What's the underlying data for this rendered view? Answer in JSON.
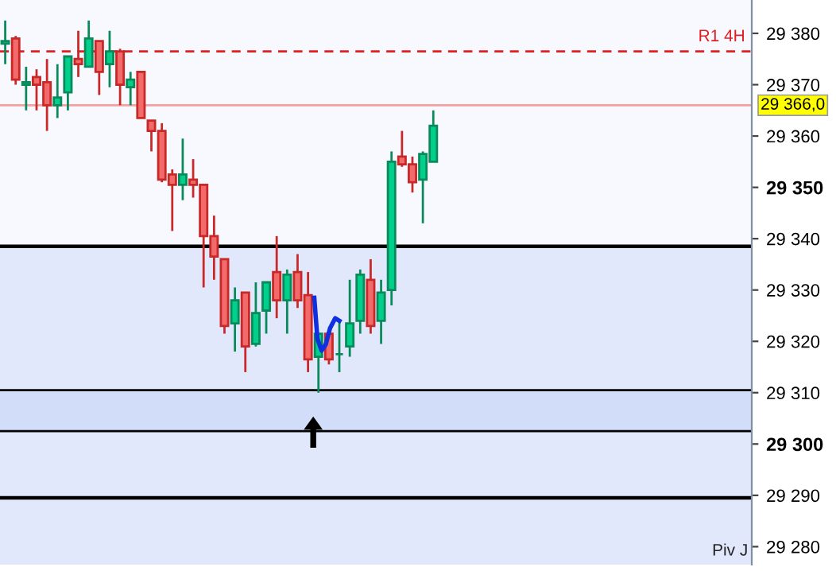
{
  "chart_data": {
    "type": "candlestick",
    "categories": [
      null,
      null,
      null,
      null,
      null,
      null,
      null,
      null,
      null,
      null,
      null,
      null,
      null,
      null,
      null,
      null,
      null,
      null,
      null,
      null,
      null,
      null,
      null,
      null,
      null,
      null,
      null,
      null,
      null,
      null,
      null,
      null,
      null,
      null,
      null,
      null,
      null,
      null,
      null,
      null,
      null,
      null,
      null,
      null,
      null,
      null,
      null,
      null,
      null,
      null,
      null,
      null,
      null,
      null,
      null,
      null,
      null,
      null,
      null,
      null,
      null,
      null,
      null,
      null,
      null,
      null,
      null,
      null,
      null,
      null,
      null,
      null
    ],
    "ohlc": [
      [
        29378,
        29382.5,
        29374,
        29378.5
      ],
      [
        29379,
        29379.5,
        29370,
        29371
      ],
      [
        29370,
        29373.5,
        29365,
        29370.5
      ],
      [
        29371.5,
        29373,
        29365,
        29370
      ],
      [
        29370.5,
        29375,
        29361,
        29366
      ],
      [
        29366,
        29374,
        29363.5,
        29367.5
      ],
      [
        29368.5,
        29375.5,
        29365,
        29375.5
      ],
      [
        29375,
        29380.5,
        29371.5,
        29374
      ],
      [
        29373.5,
        29382.5,
        29373.5,
        29379
      ],
      [
        29378.5,
        29378.5,
        29368,
        29372.5
      ],
      [
        29374,
        29380.5,
        29369.5,
        29376.5
      ],
      [
        29376.5,
        29377,
        29366,
        29370
      ],
      [
        29369.5,
        29372.5,
        29366,
        29371
      ],
      [
        29372.5,
        29372.5,
        29363.5,
        29363.5
      ],
      [
        29363,
        29363,
        29357,
        29361
      ],
      [
        29361,
        29362.5,
        29351,
        29351.5
      ],
      [
        29352.5,
        29353.5,
        29341.5,
        29350.5
      ],
      [
        29350.5,
        29359.5,
        29347.5,
        29352.5
      ],
      [
        29351.5,
        29355.5,
        29348,
        29350.5
      ],
      [
        29350.5,
        29350.5,
        29330.5,
        29340.5
      ],
      [
        29340.5,
        29344.5,
        29332,
        29336.5
      ],
      [
        29336,
        29336,
        29321.5,
        29323
      ],
      [
        29323.5,
        29330.5,
        29318,
        29328
      ],
      [
        29329.5,
        29329.5,
        29314,
        29319
      ],
      [
        29319.5,
        29331.5,
        29319,
        29325.5
      ],
      [
        29326,
        29331.5,
        29321.5,
        29331.5
      ],
      [
        29333.5,
        29340.5,
        29324.5,
        29328
      ],
      [
        29328,
        29334,
        29321.5,
        29333
      ],
      [
        29333.5,
        29337,
        29326.5,
        29328
      ],
      [
        29329,
        29333.5,
        29314,
        29316.5
      ],
      [
        29317,
        29321.5,
        29310,
        29321.5
      ],
      [
        29321.5,
        29321.5,
        29315.5,
        29316.5
      ],
      [
        29317.5,
        29324,
        29314,
        29317.5
      ],
      [
        29319,
        29332,
        29317,
        29323.5
      ],
      [
        29324,
        29334,
        29321.5,
        29333
      ],
      [
        29332,
        29336,
        29321.5,
        29323
      ],
      [
        29324,
        29332,
        29319.5,
        29329.5
      ],
      [
        29330,
        29357,
        29327,
        29355
      ],
      [
        29356,
        29361,
        29354,
        29354.5
      ],
      [
        29354.5,
        29356,
        29349,
        29351
      ],
      [
        29351.5,
        29357,
        29343,
        29356.5
      ],
      [
        29355,
        29365,
        29355,
        29362
      ],
      null,
      null,
      null,
      null,
      null,
      null,
      null,
      null,
      null,
      null,
      null,
      null,
      null,
      null,
      null,
      null,
      null,
      null,
      null,
      null,
      null,
      null,
      null,
      null,
      null,
      null,
      null,
      null,
      null,
      null
    ],
    "ylim": [
      29276.5,
      29386.5
    ],
    "yticks": [
      {
        "value": 29280,
        "label": "29 280"
      },
      {
        "value": 29290,
        "label": "29 290"
      },
      {
        "value": 29300,
        "label": "29 300"
      },
      {
        "value": 29310,
        "label": "29 310"
      },
      {
        "value": 29320,
        "label": "29 320"
      },
      {
        "value": 29330,
        "label": "29 330"
      },
      {
        "value": 29340,
        "label": "29 340"
      },
      {
        "value": 29350,
        "label": "29 350"
      },
      {
        "value": 29360,
        "label": "29 360"
      },
      {
        "value": 29370,
        "label": "29 370"
      },
      {
        "value": 29380,
        "label": "29 380"
      }
    ],
    "tick_labels": "y",
    "grid": false,
    "bands": [
      {
        "axis": "y",
        "from": 29276.5,
        "to": 29338.5,
        "color": "#e1e8fb"
      },
      {
        "axis": "y",
        "from": 29302.5,
        "to": 29310.5,
        "color": "#d2ddfa"
      }
    ],
    "ref_lines": [
      {
        "axis": "y",
        "value": 29376.5,
        "label": "R1 4H",
        "color": "#e02020",
        "line_style": "dashed"
      },
      {
        "axis": "y",
        "value": 29366,
        "label": "29 366,0",
        "color": "#f4a0a0",
        "line_style": "solid"
      },
      {
        "axis": "y",
        "value": 29338.5,
        "color": "#000000",
        "line_style": "solid"
      },
      {
        "axis": "y",
        "value": 29310.5,
        "color": "#000000",
        "line_style": "solid"
      },
      {
        "axis": "y",
        "value": 29302.5,
        "color": "#000000",
        "line_style": "solid"
      },
      {
        "axis": "y",
        "value": 29289.5,
        "color": "#000000",
        "line_style": "solid"
      }
    ],
    "annotations": [
      "Piv J"
    ]
  }
}
